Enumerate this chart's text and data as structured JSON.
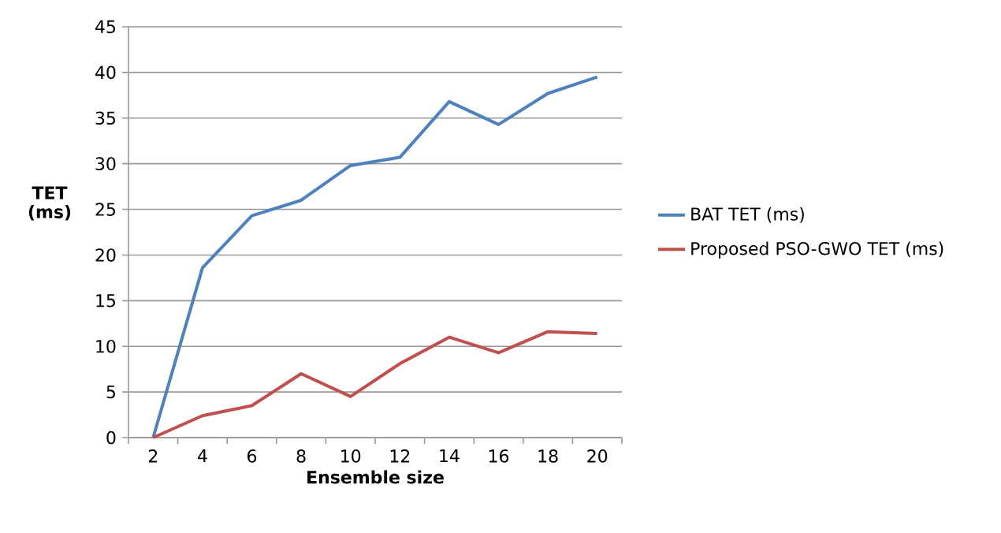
{
  "chart_data": {
    "type": "line",
    "xlabel": "Ensemble size",
    "ylabel": "TET (ms)",
    "categories": [
      "2",
      "4",
      "6",
      "8",
      "10",
      "12",
      "14",
      "16",
      "18",
      "20"
    ],
    "series": [
      {
        "name": "BAT TET (ms)",
        "color": "#4f81bd",
        "values": [
          0,
          18.6,
          24.3,
          26.0,
          29.8,
          30.7,
          36.8,
          34.3,
          37.7,
          39.5
        ]
      },
      {
        "name": "Proposed PSO-GWO TET (ms)",
        "color": "#c0504d",
        "values": [
          0,
          2.4,
          3.5,
          7.0,
          4.5,
          8.1,
          11.0,
          9.3,
          11.6,
          11.4
        ]
      }
    ],
    "ylim": [
      0,
      45
    ],
    "yticks": [
      0,
      5,
      10,
      15,
      20,
      25,
      30,
      35,
      40,
      45
    ],
    "grid": "y",
    "legend": "right",
    "marker": "none",
    "line_style": "solid"
  }
}
